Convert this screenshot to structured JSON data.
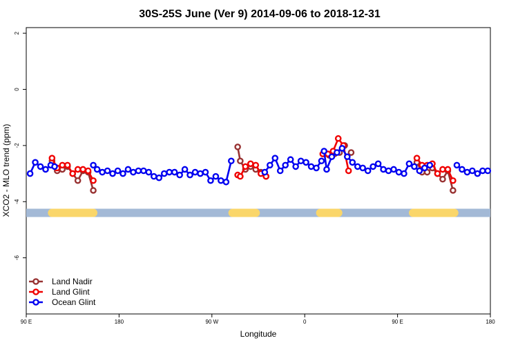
{
  "chart_data": {
    "type": "line",
    "title": "30S-25S June (Ver 9)   2014-09-06 to 2018-12-31",
    "xlabel": "Longitude",
    "ylabel": "XCO2 - MLO trend (ppm)",
    "xlim": [
      -90,
      270
    ],
    "ylim": [
      -8,
      2.2
    ],
    "xticks": [
      {
        "value": -90,
        "label": "90 E"
      },
      {
        "value": -18,
        "label": "180"
      },
      {
        "value": 54,
        "label": "90 W"
      },
      {
        "value": 126,
        "label": "0"
      },
      {
        "value": 198,
        "label": "90 E"
      },
      {
        "value": 270,
        "label": "180"
      }
    ],
    "yticks": [
      {
        "value": 2,
        "label": "2"
      },
      {
        "value": 0,
        "label": "0"
      },
      {
        "value": -2,
        "label": "-2"
      },
      {
        "value": -4,
        "label": "-4"
      },
      {
        "value": -6,
        "label": "-6"
      }
    ],
    "legend_position": "bottom-left",
    "land_mask": {
      "y": -4.4,
      "ocean_color": "#a3b9d6",
      "land_color": "#fad66a",
      "land_segments": [
        [
          -70,
          -38
        ],
        [
          70,
          88
        ],
        [
          138,
          152
        ],
        [
          210,
          242
        ]
      ]
    },
    "series": [
      {
        "name": "Land Nadir",
        "color": "#983232",
        "segments": [
          {
            "x": [
              -70,
              -66,
              -62,
              -58,
              -54,
              -50,
              -46,
              -42,
              -38
            ],
            "y": [
              -2.55,
              -2.9,
              -2.85,
              -2.75,
              -3.0,
              -3.25,
              -2.9,
              -2.95,
              -3.6
            ]
          },
          {
            "x": [
              74,
              76,
              80,
              84,
              88,
              92,
              96
            ],
            "y": [
              -2.05,
              -2.55,
              -2.85,
              -2.75,
              -2.85,
              -2.95,
              -3.1
            ]
          },
          {
            "x": [
              141,
              145,
              149,
              153,
              157
            ],
            "y": [
              -2.3,
              -2.35,
              -2.3,
              -2.25,
              -2.0
            ]
          },
          {
            "x": [
              162
            ],
            "y": [
              -2.25
            ]
          },
          {
            "x": [
              213,
              217,
              221,
              225,
              229,
              233,
              237,
              241
            ],
            "y": [
              -2.6,
              -2.95,
              -2.95,
              -2.8,
              -3.0,
              -3.2,
              -2.9,
              -3.6
            ]
          }
        ]
      },
      {
        "name": "Land Glint",
        "color": "#f00000",
        "segments": [
          {
            "x": [
              -70,
              -66,
              -62,
              -58,
              -54,
              -50,
              -46,
              -42,
              -38
            ],
            "y": [
              -2.45,
              -2.8,
              -2.7,
              -2.7,
              -3.0,
              -2.85,
              -2.85,
              -2.9,
              -3.25
            ]
          },
          {
            "x": [
              74,
              76,
              80,
              84,
              88,
              92,
              96
            ],
            "y": [
              -3.05,
              -3.1,
              -2.75,
              -2.65,
              -2.7,
              -3.0,
              -3.1
            ]
          },
          {
            "x": [
              140,
              144,
              148,
              152,
              156,
              160
            ],
            "y": [
              -2.3,
              -2.3,
              -2.2,
              -1.75,
              -2.0,
              -2.9
            ]
          },
          {
            "x": [
              213,
              217,
              221,
              225,
              229,
              233,
              237,
              241
            ],
            "y": [
              -2.45,
              -2.7,
              -2.7,
              -2.65,
              -3.0,
              -2.85,
              -2.85,
              -3.25
            ]
          }
        ]
      },
      {
        "name": "Ocean Glint",
        "color": "#0000f0",
        "segments": [
          {
            "x": [
              -87,
              -83,
              -79,
              -75,
              -71,
              -68
            ],
            "y": [
              -3.0,
              -2.6,
              -2.75,
              -2.85,
              -2.7,
              -2.75
            ]
          },
          {
            "x": [
              -38,
              -35,
              -31,
              -27,
              -23,
              -19,
              -15,
              -11,
              -7,
              -3,
              1,
              5,
              9,
              13,
              17,
              21,
              25,
              29,
              33,
              37,
              41,
              45,
              49,
              53,
              57,
              61,
              65,
              69
            ],
            "y": [
              -2.7,
              -2.85,
              -2.95,
              -2.9,
              -3.0,
              -2.9,
              -3.0,
              -2.85,
              -2.95,
              -2.9,
              -2.9,
              -2.95,
              -3.1,
              -3.15,
              -3.0,
              -2.95,
              -2.95,
              -3.05,
              -2.85,
              -3.05,
              -2.95,
              -3.0,
              -2.95,
              -3.25,
              -3.1,
              -3.25,
              -3.3,
              -2.55
            ]
          },
          {
            "x": [
              95,
              99,
              103,
              107,
              111,
              115,
              119,
              123,
              127,
              131,
              135,
              139
            ],
            "y": [
              -2.95,
              -2.7,
              -2.45,
              -2.9,
              -2.7,
              -2.5,
              -2.75,
              -2.55,
              -2.6,
              -2.75,
              -2.8,
              -2.55
            ]
          },
          {
            "x": [
              141,
              143,
              147,
              151,
              155,
              159,
              163,
              167,
              171,
              175,
              179,
              183,
              187,
              191,
              195,
              199,
              203,
              207,
              211,
              215,
              219,
              223
            ],
            "y": [
              -2.2,
              -2.85,
              -2.4,
              -2.25,
              -2.1,
              -2.4,
              -2.6,
              -2.75,
              -2.8,
              -2.9,
              -2.75,
              -2.65,
              -2.85,
              -2.9,
              -2.85,
              -2.95,
              -3.0,
              -2.65,
              -2.75,
              -2.9,
              -2.8,
              -2.7
            ]
          },
          {
            "x": [
              244,
              248,
              252,
              256,
              260,
              264,
              268
            ],
            "y": [
              -2.7,
              -2.85,
              -2.95,
              -2.9,
              -3.0,
              -2.9,
              -2.9
            ]
          }
        ]
      }
    ]
  }
}
